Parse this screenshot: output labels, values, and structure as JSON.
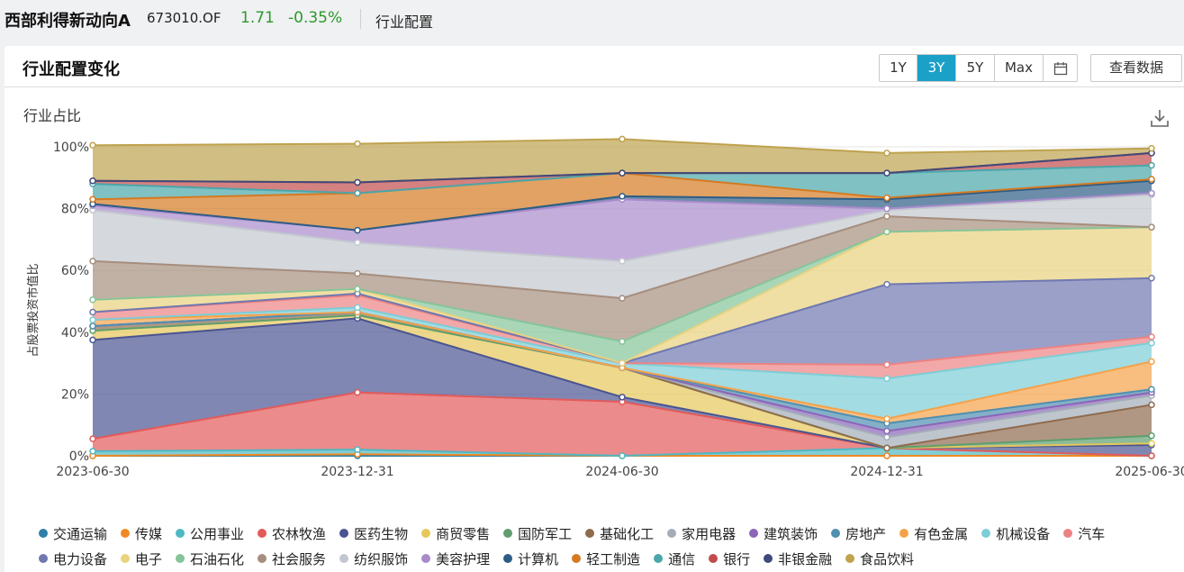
{
  "header": {
    "fund_name": "西部利得新动向A",
    "fund_code": "673010.OF",
    "price": "1.71",
    "change": "-0.35%",
    "tab": "行业配置"
  },
  "card": {
    "title": "行业配置变化",
    "ranges": [
      "1Y",
      "3Y",
      "5Y",
      "Max"
    ],
    "active_range": "3Y",
    "calendar_icon": "calendar-icon",
    "view_data_label": "查看数据",
    "chart_subtitle": "行业占比",
    "download_icon": "download-icon"
  },
  "chart_data": {
    "type": "area",
    "stacked": true,
    "ylabel": "占股票投资市值比",
    "ylim": [
      0,
      100
    ],
    "y_ticks": [
      "0%",
      "20%",
      "40%",
      "60%",
      "80%",
      "100%"
    ],
    "x": [
      "2023-06-30",
      "2023-12-31",
      "2024-06-30",
      "2024-12-31",
      "2025-06-30"
    ],
    "grid": true,
    "legend_position": "bottom",
    "series": [
      {
        "name": "交通运输",
        "color": "#2f7fa8",
        "values": [
          0,
          0,
          0,
          0,
          0
        ]
      },
      {
        "name": "传媒",
        "color": "#f08a24",
        "values": [
          0,
          0.5,
          0,
          0,
          0
        ]
      },
      {
        "name": "公用事业",
        "color": "#4fb8c2",
        "values": [
          1.5,
          1.5,
          0,
          2.5,
          0
        ]
      },
      {
        "name": "农林牧渔",
        "color": "#e25a5a",
        "values": [
          4,
          18.5,
          17.5,
          0,
          0
        ]
      },
      {
        "name": "医药生物",
        "color": "#4a5491",
        "values": [
          32,
          24,
          1.5,
          0,
          3.5
        ]
      },
      {
        "name": "商贸零售",
        "color": "#e6c85a",
        "values": [
          3,
          1,
          9.5,
          0,
          0.5
        ]
      },
      {
        "name": "国防军工",
        "color": "#5e9e6e",
        "values": [
          0,
          0,
          0,
          0,
          2.5
        ]
      },
      {
        "name": "基础化工",
        "color": "#8f6b4e",
        "values": [
          1.5,
          1,
          0,
          0,
          10
        ]
      },
      {
        "name": "家用电器",
        "color": "#a3adb8",
        "values": [
          0,
          0,
          0,
          3.5,
          3
        ]
      },
      {
        "name": "建筑装饰",
        "color": "#8a65b8",
        "values": [
          0,
          0,
          0,
          2,
          1
        ]
      },
      {
        "name": "房地产",
        "color": "#4f8fb0",
        "values": [
          0,
          0,
          0,
          2.5,
          1
        ]
      },
      {
        "name": "有色金属",
        "color": "#f4a24a",
        "values": [
          2,
          0,
          0,
          1.5,
          9
        ]
      },
      {
        "name": "机械设备",
        "color": "#7ccdd6",
        "values": [
          0,
          1.5,
          1.5,
          13,
          6
        ]
      },
      {
        "name": "汽车",
        "color": "#ec8383",
        "values": [
          2.5,
          4,
          0,
          4.5,
          2
        ]
      },
      {
        "name": "电力设备",
        "color": "#6f78b0",
        "values": [
          0,
          0.5,
          0,
          26,
          19
        ]
      },
      {
        "name": "电子",
        "color": "#ead27e",
        "values": [
          4,
          1.5,
          0,
          17,
          16.5
        ]
      },
      {
        "name": "石油石化",
        "color": "#86c49a",
        "values": [
          0,
          0,
          7,
          0,
          0
        ]
      },
      {
        "name": "社会服务",
        "color": "#a68e7e",
        "values": [
          12.5,
          5,
          14,
          5,
          0
        ]
      },
      {
        "name": "纺织服饰",
        "color": "#c3c7cf",
        "values": [
          16.5,
          10,
          12,
          2,
          10.5
        ]
      },
      {
        "name": "美容护理",
        "color": "#a98bcc",
        "values": [
          1.5,
          4,
          20,
          0.5,
          0.5
        ]
      },
      {
        "name": "计算机",
        "color": "#2d5d85",
        "values": [
          0.5,
          0,
          1,
          3,
          4
        ]
      },
      {
        "name": "轻工制造",
        "color": "#d47a22",
        "values": [
          1.5,
          12,
          7.5,
          0.5,
          0.5
        ]
      },
      {
        "name": "通信",
        "color": "#4aa6aa",
        "values": [
          5,
          0,
          0,
          8,
          4.5
        ]
      },
      {
        "name": "银行",
        "color": "#c24b4b",
        "values": [
          1,
          3.5,
          0,
          0,
          4
        ]
      },
      {
        "name": "非银金融",
        "color": "#3f4a7a",
        "values": [
          0,
          0,
          0,
          0,
          0
        ]
      },
      {
        "name": "食品饮料",
        "color": "#bea24e",
        "values": [
          11.5,
          12.5,
          11,
          6.5,
          1.5
        ]
      }
    ]
  }
}
